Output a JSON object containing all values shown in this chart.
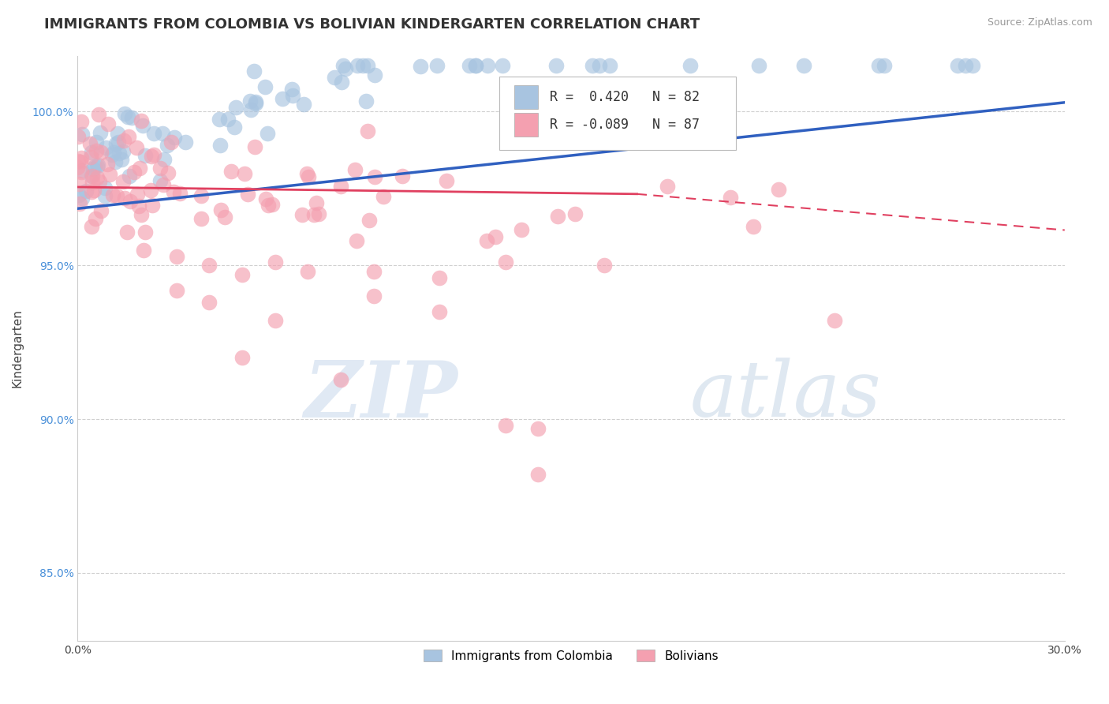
{
  "title": "IMMIGRANTS FROM COLOMBIA VS BOLIVIAN KINDERGARTEN CORRELATION CHART",
  "source_text": "Source: ZipAtlas.com",
  "ylabel": "Kindergarten",
  "xlim": [
    0.0,
    0.3
  ],
  "ylim": [
    0.828,
    1.018
  ],
  "xticks": [
    0.0,
    0.05,
    0.1,
    0.15,
    0.2,
    0.25,
    0.3
  ],
  "xticklabels": [
    "0.0%",
    "",
    "",
    "",
    "",
    "",
    "30.0%"
  ],
  "yticks": [
    0.85,
    0.9,
    0.95,
    1.0
  ],
  "yticklabels": [
    "85.0%",
    "90.0%",
    "95.0%",
    "100.0%"
  ],
  "colombia_color": "#a8c4e0",
  "bolivia_color": "#f4a0b0",
  "colombia_line_color": "#3060c0",
  "bolivia_line_color": "#e04060",
  "colombia_r": 0.42,
  "colombia_n": 82,
  "bolivia_r": -0.089,
  "bolivia_n": 87,
  "watermark_zip": "ZIP",
  "watermark_atlas": "atlas",
  "background_color": "#ffffff",
  "grid_color": "#d0d0d0",
  "title_fontsize": 13,
  "axis_label_fontsize": 11,
  "tick_fontsize": 10
}
